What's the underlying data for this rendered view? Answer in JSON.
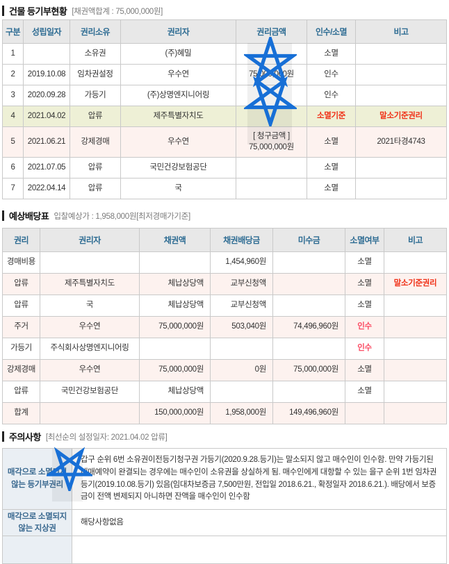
{
  "colors": {
    "header_text": "#2e6c93",
    "header_bg": "#e8e8e8",
    "highlight_yellow_row": "#eef0d6",
    "highlight_pink_row": "#fdf2ef",
    "alert_red": "#f03017",
    "assume_pink_red": "#fb4b63",
    "caution_label_bg": "#eaeff4",
    "caution_label_text": "#39688f",
    "watermark_star_blue": "#176fd6"
  },
  "registry": {
    "title": "건물 등기부현황",
    "subtitle": "[채권액합계 : 75,000,000원]",
    "headers": [
      "구분",
      "성립일자",
      "권리소유",
      "권리자",
      "권리금액",
      "인수/소멸",
      "비고"
    ],
    "rows": [
      {
        "bg": "",
        "cells": [
          "1",
          "",
          "소유권",
          "(주)혜밀",
          "",
          "소멸",
          ""
        ]
      },
      {
        "bg": "",
        "cells": [
          "2",
          "2019.10.08",
          "임차권설정",
          "우수연",
          "75,000,000원",
          "인수",
          ""
        ]
      },
      {
        "bg": "",
        "cells": [
          "3",
          "2020.09.28",
          "가등기",
          "(주)상명엔지니어링",
          "",
          "인수",
          ""
        ]
      },
      {
        "bg": "yellow",
        "cells": [
          "4",
          "2021.04.02",
          "압류",
          "제주특별자치도",
          "",
          {
            "t": "소멸기준",
            "c": "red"
          },
          {
            "t": "말소기준권리",
            "c": "red"
          }
        ]
      },
      {
        "bg": "pink tall",
        "cells": [
          "5",
          "2021.06.21",
          "강제경매",
          "우수연",
          "[ 청구금액 ]\n75,000,000원",
          "소멸",
          "2021타경4743"
        ]
      },
      {
        "bg": "",
        "cells": [
          "6",
          "2021.07.05",
          "압류",
          "국민건강보험공단",
          "",
          "소멸",
          ""
        ]
      },
      {
        "bg": "",
        "cells": [
          "7",
          "2022.04.14",
          "압류",
          "국",
          "",
          "소멸",
          ""
        ]
      }
    ]
  },
  "dividend": {
    "title": "예상배당표",
    "subtitle": "입찰예상가 : 1,958,000원[최저경매가기준]",
    "headers": [
      "권리",
      "권리자",
      "채권액",
      "채권배당금",
      "미수금",
      "소멸여부",
      "비고"
    ],
    "rows": [
      {
        "bg": "",
        "cells": [
          "경매비용",
          "",
          "",
          "1,454,960원",
          "",
          "소멸",
          ""
        ]
      },
      {
        "bg": "pink",
        "cells": [
          "압류",
          "제주특별자치도",
          "체납상당액",
          "교부신청액",
          "",
          "소멸",
          {
            "t": "말소기준권리",
            "c": "red"
          }
        ]
      },
      {
        "bg": "",
        "cells": [
          "압류",
          "국",
          "체납상당액",
          "교부신청액",
          "",
          "소멸",
          ""
        ]
      },
      {
        "bg": "pink",
        "cells": [
          "주거",
          "우수연",
          "75,000,000원",
          "503,040원",
          "74,496,960원",
          {
            "t": "인수",
            "c": "pinkred"
          },
          ""
        ]
      },
      {
        "bg": "",
        "cells": [
          "가등기",
          "주식회사상명엔지니어링",
          "",
          "",
          "",
          {
            "t": "인수",
            "c": "pinkred"
          },
          ""
        ]
      },
      {
        "bg": "pink",
        "cells": [
          "강제경매",
          "우수연",
          "75,000,000원",
          "0원",
          "75,000,000원",
          "소멸",
          ""
        ]
      },
      {
        "bg": "",
        "cells": [
          "압류",
          "국민건강보험공단",
          "체납상당액",
          "",
          "",
          "소멸",
          ""
        ]
      },
      {
        "bg": "pink",
        "cells": [
          "합계",
          "",
          "150,000,000원",
          "1,958,000원",
          "149,496,960원",
          "",
          ""
        ]
      }
    ]
  },
  "caution": {
    "title": "주의사항",
    "subtitle": "[최선순의 설정일자: 2021.04.02 압류]",
    "rows": [
      {
        "bg": "",
        "cells": [
          {
            "t": "매각으로 소멸되지\n않는 등기부권리",
            "c": "clabel"
          },
          {
            "t": "갑구 순위 6번 소유권이전등기청구권 가등기(2020.9.28.등기)는 말소되지 않고 매수인이 인수함. 만약 가등기된 매매예약이 완결되는 경우에는 매수인이 소유권을 상실하게 됨. 매수인에게 대항할 수 있는 을구 순위 1번 임차권등기(2019.10.08.등기) 있음(임대차보증금 7,500만원, 전입일 2018.6.21., 확정일자 2018.6.21.). 배당에서 보증금이 전액 변제되지 아니하면 잔액을 매수인이 인수함",
            "c": "ccontent"
          }
        ]
      },
      {
        "bg": "",
        "cells": [
          {
            "t": "매각으로 소멸되지\n않는 지상권",
            "c": "clabel"
          },
          {
            "t": "해당사항없음",
            "c": "ccontent"
          }
        ]
      },
      {
        "bg": "",
        "cells": [
          {
            "t": "",
            "c": "clabel"
          },
          {
            "t": "",
            "c": "ccontent"
          }
        ]
      }
    ]
  }
}
